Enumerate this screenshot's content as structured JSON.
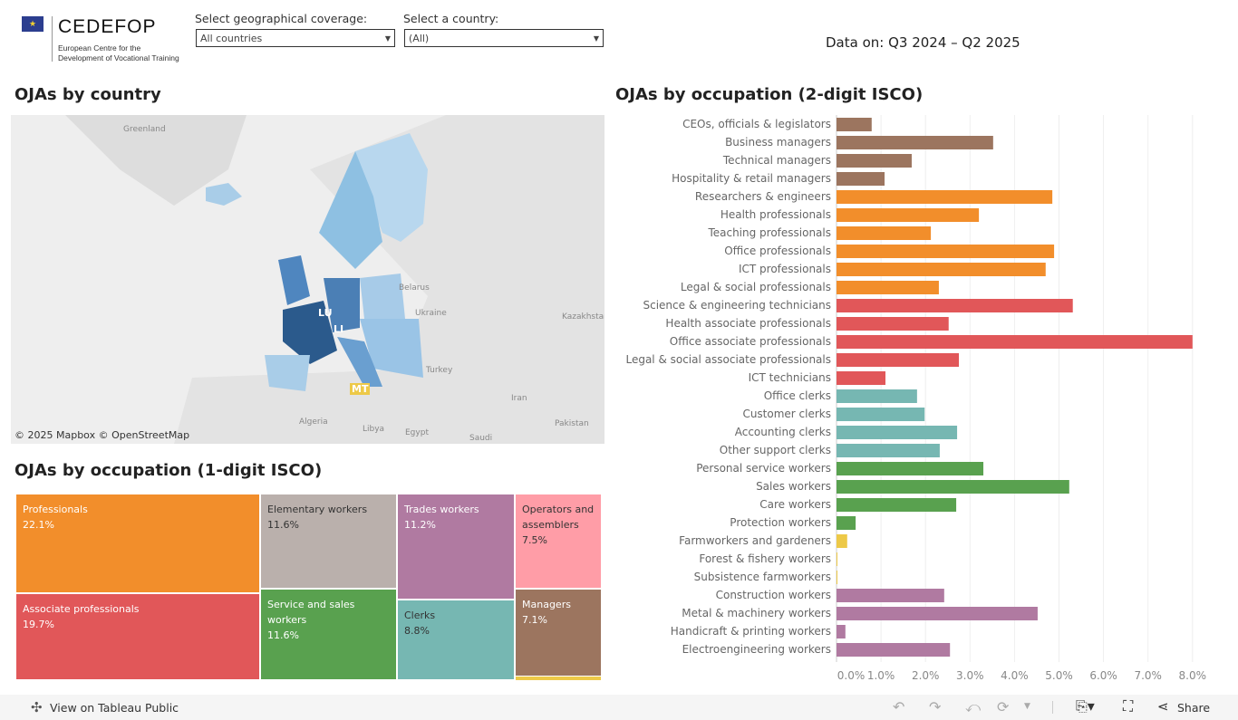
{
  "logo": {
    "name": "CEDEFOP",
    "subtitle": "European Centre for the Development of Vocational Training"
  },
  "filters": {
    "coverage": {
      "label": "Select geographical coverage:",
      "value": "All countries"
    },
    "country": {
      "label": "Select a country:",
      "value": "(All)"
    }
  },
  "data_period": "Data on: Q3 2024 – Q2 2025",
  "map": {
    "title": "OJAs by country",
    "labels": [
      "Greenland",
      "Belarus",
      "Ukraine",
      "Kazakhstan",
      "Turkey",
      "Iran",
      "Algeria",
      "Libya",
      "Egypt",
      "Saudi",
      "Pakistan"
    ],
    "country_labels": [
      "LU",
      "LI",
      "MT"
    ],
    "attribution": "© 2025 Mapbox  © OpenStreetMap"
  },
  "treemap": {
    "title": "OJAs by occupation (1-digit ISCO)",
    "items": [
      {
        "label": "Professionals",
        "value": "22.1%",
        "color": "#f28e2b"
      },
      {
        "label": "Associate professionals",
        "value": "19.7%",
        "color": "#e15759"
      },
      {
        "label": "Elementary workers",
        "value": "11.6%",
        "color": "#bab0ac"
      },
      {
        "label": "Service and sales workers",
        "value": "11.6%",
        "color": "#59a14f"
      },
      {
        "label": "Trades workers",
        "value": "11.2%",
        "color": "#b07aa1"
      },
      {
        "label": "Clerks",
        "value": "8.8%",
        "color": "#76b7b2"
      },
      {
        "label": "Operators and assemblers",
        "value": "7.5%",
        "color": "#ff9da7"
      },
      {
        "label": "Managers",
        "value": "7.1%",
        "color": "#9c755f"
      },
      {
        "label": "",
        "value": "",
        "color": "#edc948"
      }
    ]
  },
  "chart_data": {
    "type": "bar",
    "orientation": "horizontal",
    "title": "OJAs by occupation (2-digit ISCO)",
    "xlim": [
      0,
      8
    ],
    "ticks": [
      "0.0%",
      "1.0%",
      "2.0%",
      "3.0%",
      "4.0%",
      "5.0%",
      "6.0%",
      "7.0%",
      "8.0%"
    ],
    "grid": true,
    "categories": [
      "CEOs, officials & legislators",
      "Business managers",
      "Technical managers",
      "Hospitality & retail managers",
      "Researchers & engineers",
      "Health professionals",
      "Teaching professionals",
      "Office professionals",
      "ICT professionals",
      "Legal & social professionals",
      "Science & engineering technicians",
      "Health associate professionals",
      "Office associate professionals",
      "Legal & social associate professionals",
      "ICT technicians",
      "Office clerks",
      "Customer clerks",
      "Accounting clerks",
      "Other support clerks",
      "Personal service workers",
      "Sales workers",
      "Care workers",
      "Protection workers",
      "Farmworkers and gardeners",
      "Forest & fishery workers",
      "Subsistence farmworkers",
      "Construction workers",
      "Metal & machinery workers",
      "Handicraft & printing workers",
      "Electroengineering workers"
    ],
    "values": [
      0.79,
      3.52,
      1.69,
      1.08,
      4.85,
      3.2,
      2.12,
      4.89,
      4.7,
      2.3,
      5.31,
      2.52,
      8.0,
      2.75,
      1.1,
      1.81,
      1.98,
      2.71,
      2.32,
      3.3,
      5.23,
      2.69,
      0.43,
      0.24,
      0.01,
      0.01,
      2.42,
      4.52,
      0.2,
      2.55
    ],
    "colors": [
      "#9c755f",
      "#9c755f",
      "#9c755f",
      "#9c755f",
      "#f28e2b",
      "#f28e2b",
      "#f28e2b",
      "#f28e2b",
      "#f28e2b",
      "#f28e2b",
      "#e15759",
      "#e15759",
      "#e15759",
      "#e15759",
      "#e15759",
      "#76b7b2",
      "#76b7b2",
      "#76b7b2",
      "#76b7b2",
      "#59a14f",
      "#59a14f",
      "#59a14f",
      "#59a14f",
      "#edc948",
      "#edc948",
      "#edc948",
      "#b07aa1",
      "#b07aa1",
      "#b07aa1",
      "#b07aa1"
    ]
  },
  "footer": {
    "view_label": "View on Tableau Public",
    "share_label": "Share"
  }
}
